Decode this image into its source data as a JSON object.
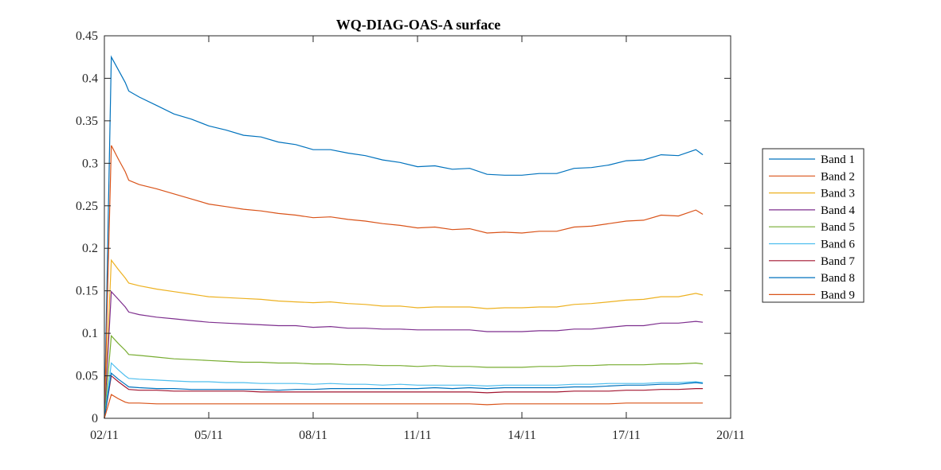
{
  "chart_data": {
    "type": "line",
    "title": "WQ-DIAG-OAS-A surface",
    "xlabel": "",
    "ylabel": "",
    "x_ticks": [
      "02/11",
      "05/11",
      "08/11",
      "11/11",
      "14/11",
      "17/11",
      "20/11"
    ],
    "x_tick_days": [
      0,
      3,
      6,
      9,
      12,
      15,
      18
    ],
    "xlim_days": [
      0,
      18
    ],
    "ylim": [
      0,
      0.45
    ],
    "y_ticks": [
      0,
      0.05,
      0.1,
      0.15,
      0.2,
      0.25,
      0.3,
      0.35,
      0.4,
      0.45
    ],
    "y_tick_labels": [
      "0",
      "0.05",
      "0.1",
      "0.15",
      "0.2",
      "0.25",
      "0.3",
      "0.35",
      "0.4",
      "0.45"
    ],
    "grid": false,
    "legend_position": "right",
    "x_days": [
      0,
      0.2,
      0.4,
      0.6,
      0.7,
      1,
      1.5,
      2,
      2.5,
      3,
      3.5,
      4,
      4.5,
      5,
      5.5,
      6,
      6.5,
      7,
      7.5,
      8,
      8.5,
      9,
      9.5,
      10,
      10.5,
      11,
      11.5,
      12,
      12.5,
      13,
      13.5,
      14,
      14.5,
      15,
      15.5,
      16,
      16.5,
      17,
      17.2
    ],
    "series": [
      {
        "name": "Band 1",
        "color": "#0072BD",
        "values": [
          0,
          0.425,
          0.41,
          0.395,
          0.385,
          0.378,
          0.368,
          0.358,
          0.352,
          0.344,
          0.339,
          0.333,
          0.331,
          0.325,
          0.322,
          0.316,
          0.316,
          0.312,
          0.309,
          0.304,
          0.301,
          0.296,
          0.297,
          0.293,
          0.294,
          0.287,
          0.286,
          0.286,
          0.288,
          0.288,
          0.294,
          0.295,
          0.298,
          0.303,
          0.304,
          0.31,
          0.309,
          0.316,
          0.31
        ]
      },
      {
        "name": "Band 2",
        "color": "#D95319",
        "values": [
          0,
          0.321,
          0.305,
          0.29,
          0.28,
          0.275,
          0.27,
          0.264,
          0.258,
          0.252,
          0.249,
          0.246,
          0.244,
          0.241,
          0.239,
          0.236,
          0.237,
          0.234,
          0.232,
          0.229,
          0.227,
          0.224,
          0.225,
          0.222,
          0.223,
          0.218,
          0.219,
          0.218,
          0.22,
          0.22,
          0.225,
          0.226,
          0.229,
          0.232,
          0.233,
          0.239,
          0.238,
          0.245,
          0.24
        ]
      },
      {
        "name": "Band 3",
        "color": "#EDB120",
        "values": [
          0,
          0.186,
          0.175,
          0.165,
          0.159,
          0.156,
          0.152,
          0.149,
          0.146,
          0.143,
          0.142,
          0.141,
          0.14,
          0.138,
          0.137,
          0.136,
          0.137,
          0.135,
          0.134,
          0.132,
          0.132,
          0.13,
          0.131,
          0.131,
          0.131,
          0.129,
          0.13,
          0.13,
          0.131,
          0.131,
          0.134,
          0.135,
          0.137,
          0.139,
          0.14,
          0.143,
          0.143,
          0.147,
          0.145
        ]
      },
      {
        "name": "Band 4",
        "color": "#7E2F8E",
        "values": [
          0,
          0.149,
          0.14,
          0.131,
          0.125,
          0.122,
          0.119,
          0.117,
          0.115,
          0.113,
          0.112,
          0.111,
          0.11,
          0.109,
          0.109,
          0.107,
          0.108,
          0.106,
          0.106,
          0.105,
          0.105,
          0.104,
          0.104,
          0.104,
          0.104,
          0.102,
          0.102,
          0.102,
          0.103,
          0.103,
          0.105,
          0.105,
          0.107,
          0.109,
          0.109,
          0.112,
          0.112,
          0.114,
          0.113
        ]
      },
      {
        "name": "Band 5",
        "color": "#77AC30",
        "values": [
          0,
          0.097,
          0.088,
          0.08,
          0.075,
          0.074,
          0.072,
          0.07,
          0.069,
          0.068,
          0.067,
          0.066,
          0.066,
          0.065,
          0.065,
          0.064,
          0.064,
          0.063,
          0.063,
          0.062,
          0.062,
          0.061,
          0.062,
          0.061,
          0.061,
          0.06,
          0.06,
          0.06,
          0.061,
          0.061,
          0.062,
          0.062,
          0.063,
          0.063,
          0.063,
          0.064,
          0.064,
          0.065,
          0.064
        ]
      },
      {
        "name": "Band 6",
        "color": "#4DBEEE",
        "values": [
          0,
          0.065,
          0.057,
          0.05,
          0.047,
          0.046,
          0.045,
          0.044,
          0.043,
          0.043,
          0.042,
          0.042,
          0.041,
          0.041,
          0.041,
          0.04,
          0.041,
          0.04,
          0.04,
          0.039,
          0.04,
          0.039,
          0.039,
          0.039,
          0.039,
          0.038,
          0.039,
          0.039,
          0.039,
          0.039,
          0.04,
          0.04,
          0.041,
          0.041,
          0.041,
          0.042,
          0.042,
          0.043,
          0.042
        ]
      },
      {
        "name": "Band 7",
        "color": "#A2142F",
        "values": [
          0,
          0.05,
          0.043,
          0.037,
          0.034,
          0.033,
          0.033,
          0.032,
          0.032,
          0.032,
          0.032,
          0.032,
          0.031,
          0.031,
          0.031,
          0.031,
          0.031,
          0.031,
          0.031,
          0.031,
          0.031,
          0.031,
          0.031,
          0.031,
          0.031,
          0.03,
          0.031,
          0.031,
          0.031,
          0.031,
          0.032,
          0.032,
          0.032,
          0.033,
          0.033,
          0.034,
          0.034,
          0.035,
          0.035
        ]
      },
      {
        "name": "Band 8",
        "color": "#0072BD",
        "values": [
          0,
          0.053,
          0.046,
          0.04,
          0.037,
          0.036,
          0.035,
          0.035,
          0.034,
          0.034,
          0.034,
          0.034,
          0.034,
          0.033,
          0.034,
          0.034,
          0.035,
          0.035,
          0.035,
          0.035,
          0.035,
          0.035,
          0.036,
          0.035,
          0.036,
          0.035,
          0.036,
          0.036,
          0.036,
          0.036,
          0.037,
          0.037,
          0.038,
          0.039,
          0.039,
          0.04,
          0.04,
          0.042,
          0.041
        ]
      },
      {
        "name": "Band 9",
        "color": "#D95319",
        "values": [
          0,
          0.028,
          0.023,
          0.019,
          0.018,
          0.018,
          0.017,
          0.017,
          0.017,
          0.017,
          0.017,
          0.017,
          0.017,
          0.017,
          0.017,
          0.017,
          0.017,
          0.017,
          0.017,
          0.017,
          0.017,
          0.017,
          0.017,
          0.017,
          0.017,
          0.016,
          0.017,
          0.017,
          0.017,
          0.017,
          0.017,
          0.017,
          0.017,
          0.018,
          0.018,
          0.018,
          0.018,
          0.018,
          0.018
        ]
      }
    ]
  }
}
